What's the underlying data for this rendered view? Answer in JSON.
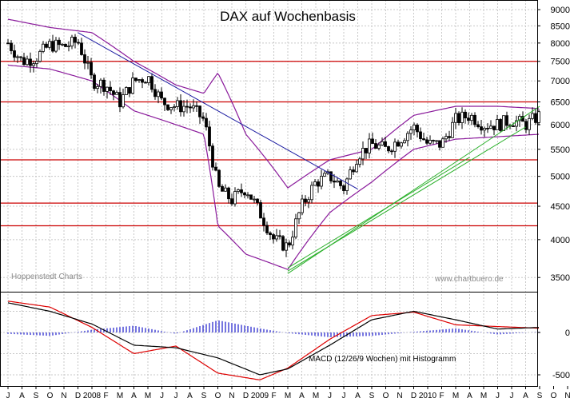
{
  "chart_data": [
    {
      "type": "candlestick",
      "title": "DAX auf Wochenbasis",
      "scale": "log",
      "ylim": [
        3400,
        9200
      ],
      "y_ticks": [
        9000,
        8500,
        8000,
        7500,
        7000,
        6500,
        6000,
        5500,
        5000,
        4500,
        4000,
        3500
      ],
      "grid": true,
      "horizontal_lines_red": [
        7500,
        6500,
        5300,
        4550,
        4200
      ],
      "credits": {
        "left": "Hoppenstedt Charts",
        "right": "www.chartbuero.de"
      },
      "trendlines": {
        "blue_downtrend": {
          "from": [
            "2007-12",
            8300
          ],
          "to": [
            "2009-08",
            4780
          ]
        },
        "green_uptrend_1": {
          "from": [
            "2009-03",
            3550
          ],
          "to": [
            "2010-09",
            6400
          ]
        },
        "green_uptrend_2": {
          "from": [
            "2009-03",
            3580
          ],
          "to": [
            "2010-08",
            5950
          ]
        },
        "green_uptrend_3": {
          "from": [
            "2009-03",
            3620
          ],
          "to": [
            "2010-04",
            5350
          ]
        }
      },
      "series": [
        {
          "name": "DAX weekly close (approx.)",
          "x": [
            "2007-07",
            "2007-08",
            "2007-09",
            "2007-10",
            "2007-11",
            "2007-12",
            "2008-01",
            "2008-02",
            "2008-03",
            "2008-04",
            "2008-05",
            "2008-06",
            "2008-07",
            "2008-08",
            "2008-09",
            "2008-10",
            "2008-11",
            "2008-12",
            "2009-01",
            "2009-02",
            "2009-03",
            "2009-04",
            "2009-05",
            "2009-06",
            "2009-07",
            "2009-08",
            "2009-09",
            "2009-10",
            "2009-11",
            "2009-12",
            "2010-01",
            "2010-02",
            "2010-03",
            "2010-04",
            "2010-05",
            "2010-06",
            "2010-07",
            "2010-08",
            "2010-09"
          ],
          "values": [
            8000,
            7500,
            7600,
            7950,
            7900,
            8050,
            7000,
            6900,
            6500,
            7000,
            7100,
            6500,
            6400,
            6400,
            6100,
            4800,
            4600,
            4800,
            4400,
            4000,
            3900,
            4500,
            4900,
            5000,
            4800,
            5400,
            5600,
            5500,
            5700,
            5950,
            5600,
            5600,
            6100,
            6200,
            6000,
            6000,
            6100,
            6000,
            6200
          ]
        },
        {
          "name": "Bollinger upper (approx.)",
          "x": [
            "2007-07",
            "2007-10",
            "2008-01",
            "2008-04",
            "2008-07",
            "2008-09",
            "2008-10",
            "2008-12",
            "2009-03",
            "2009-06",
            "2009-09",
            "2009-12",
            "2010-03",
            "2010-06",
            "2010-09"
          ],
          "values": [
            8700,
            8450,
            8300,
            7500,
            6900,
            6700,
            7200,
            5800,
            4800,
            5300,
            5500,
            6200,
            6400,
            6400,
            6350
          ]
        },
        {
          "name": "Bollinger lower (approx.)",
          "x": [
            "2007-07",
            "2007-10",
            "2008-01",
            "2008-04",
            "2008-07",
            "2008-09",
            "2008-10",
            "2008-12",
            "2009-03",
            "2009-06",
            "2009-09",
            "2009-12",
            "2010-03",
            "2010-06",
            "2010-09"
          ],
          "values": [
            7400,
            7300,
            7000,
            6300,
            6000,
            5800,
            4200,
            3800,
            3600,
            4400,
            4900,
            5500,
            5700,
            5750,
            5800
          ]
        }
      ],
      "x_ticks": [
        "J",
        "A",
        "S",
        "O",
        "N",
        "D",
        "2008",
        "F",
        "M",
        "A",
        "M",
        "J",
        "J",
        "A",
        "S",
        "O",
        "N",
        "D",
        "2009",
        "F",
        "M",
        "A",
        "M",
        "J",
        "J",
        "A",
        "S",
        "O",
        "N",
        "D",
        "2010",
        "F",
        "M",
        "A",
        "M",
        "J",
        "J",
        "A",
        "S",
        "O",
        "N"
      ]
    },
    {
      "type": "line+bar",
      "title": "MACD (12/26/9 Wochen) mit Histogramm",
      "y_ticks": [
        0,
        -500
      ],
      "ylim": [
        -600,
        500
      ],
      "series": [
        {
          "name": "MACD (black)",
          "x": [
            "2007-07",
            "2007-10",
            "2008-01",
            "2008-04",
            "2008-07",
            "2008-10",
            "2009-01",
            "2009-03",
            "2009-06",
            "2009-09",
            "2009-12",
            "2010-03",
            "2010-06",
            "2010-09"
          ],
          "values": [
            350,
            250,
            100,
            -150,
            -180,
            -300,
            -500,
            -430,
            -150,
            150,
            250,
            150,
            40,
            60
          ]
        },
        {
          "name": "Signal (red)",
          "x": [
            "2007-07",
            "2007-10",
            "2008-01",
            "2008-04",
            "2008-07",
            "2008-10",
            "2009-01",
            "2009-03",
            "2009-06",
            "2009-09",
            "2009-12",
            "2010-03",
            "2010-06",
            "2010-09"
          ],
          "values": [
            370,
            300,
            60,
            -250,
            -160,
            -480,
            -560,
            -420,
            -80,
            200,
            240,
            90,
            70,
            50
          ]
        },
        {
          "name": "Histogram (blue)",
          "note": "small bars around zero, ±~80"
        }
      ]
    }
  ],
  "ui": {
    "title": "DAX auf Wochenbasis",
    "credit_left": "Hoppenstedt Charts",
    "credit_right": "www.chartbuero.de",
    "macd_label": "MACD (12/26/9 Wochen) mit Histogramm",
    "main_y_labels": [
      "9000",
      "8500",
      "8000",
      "7500",
      "7000",
      "6500",
      "6000",
      "5500",
      "5000",
      "4500",
      "4000",
      "3500"
    ],
    "macd_y_labels": [
      "0",
      "-500"
    ],
    "x_labels": [
      "J",
      "A",
      "S",
      "O",
      "N",
      "D",
      "2008",
      "F",
      "M",
      "A",
      "M",
      "J",
      "J",
      "A",
      "S",
      "O",
      "N",
      "D",
      "2009",
      "F",
      "M",
      "A",
      "M",
      "J",
      "J",
      "A",
      "S",
      "O",
      "N",
      "D",
      "2010",
      "F",
      "M",
      "A",
      "M",
      "J",
      "J",
      "A",
      "S",
      "O",
      "N"
    ]
  }
}
